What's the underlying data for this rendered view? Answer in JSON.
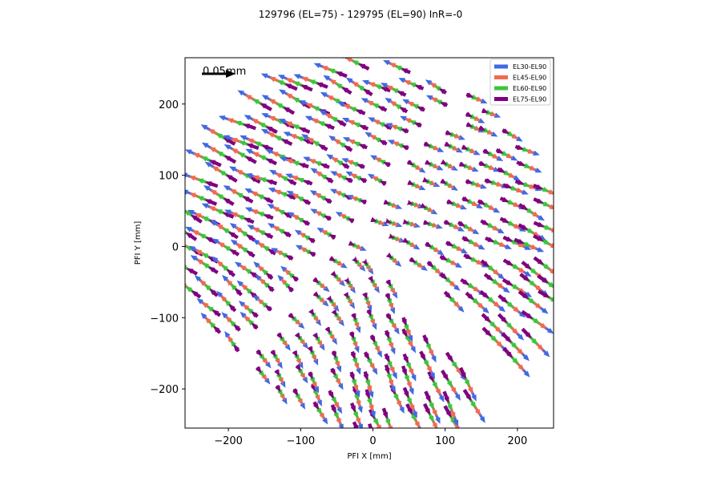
{
  "chart_data": {
    "type": "quiver",
    "title": "129796 (EL=75) - 129795 (EL=90) InR=-0",
    "xlabel": "PFI X [mm]",
    "ylabel": "PFI Y [mm]",
    "xlim": [
      -260,
      250
    ],
    "ylim": [
      -255,
      265
    ],
    "xticks": [
      -200,
      -100,
      0,
      100,
      200
    ],
    "yticks": [
      -200,
      -100,
      0,
      100,
      200
    ],
    "xtick_labels": [
      "−200",
      "−100",
      "0",
      "100",
      "200"
    ],
    "ytick_labels": [
      "−200",
      "−100",
      "0",
      "100",
      "200"
    ],
    "legend_position": "upper right",
    "quiver_key": {
      "label": "0.05mm",
      "position": "upper left"
    },
    "series": [
      {
        "name": "EL30-EL90",
        "color": "#4169e1",
        "scale": 1.0
      },
      {
        "name": "EL45-EL90",
        "color": "#f26a4f",
        "scale": 0.78
      },
      {
        "name": "EL60-EL90",
        "color": "#3cc63c",
        "scale": 0.56
      },
      {
        "name": "EL75-EL90",
        "color": "#800080",
        "scale": 0.34
      }
    ]
  }
}
